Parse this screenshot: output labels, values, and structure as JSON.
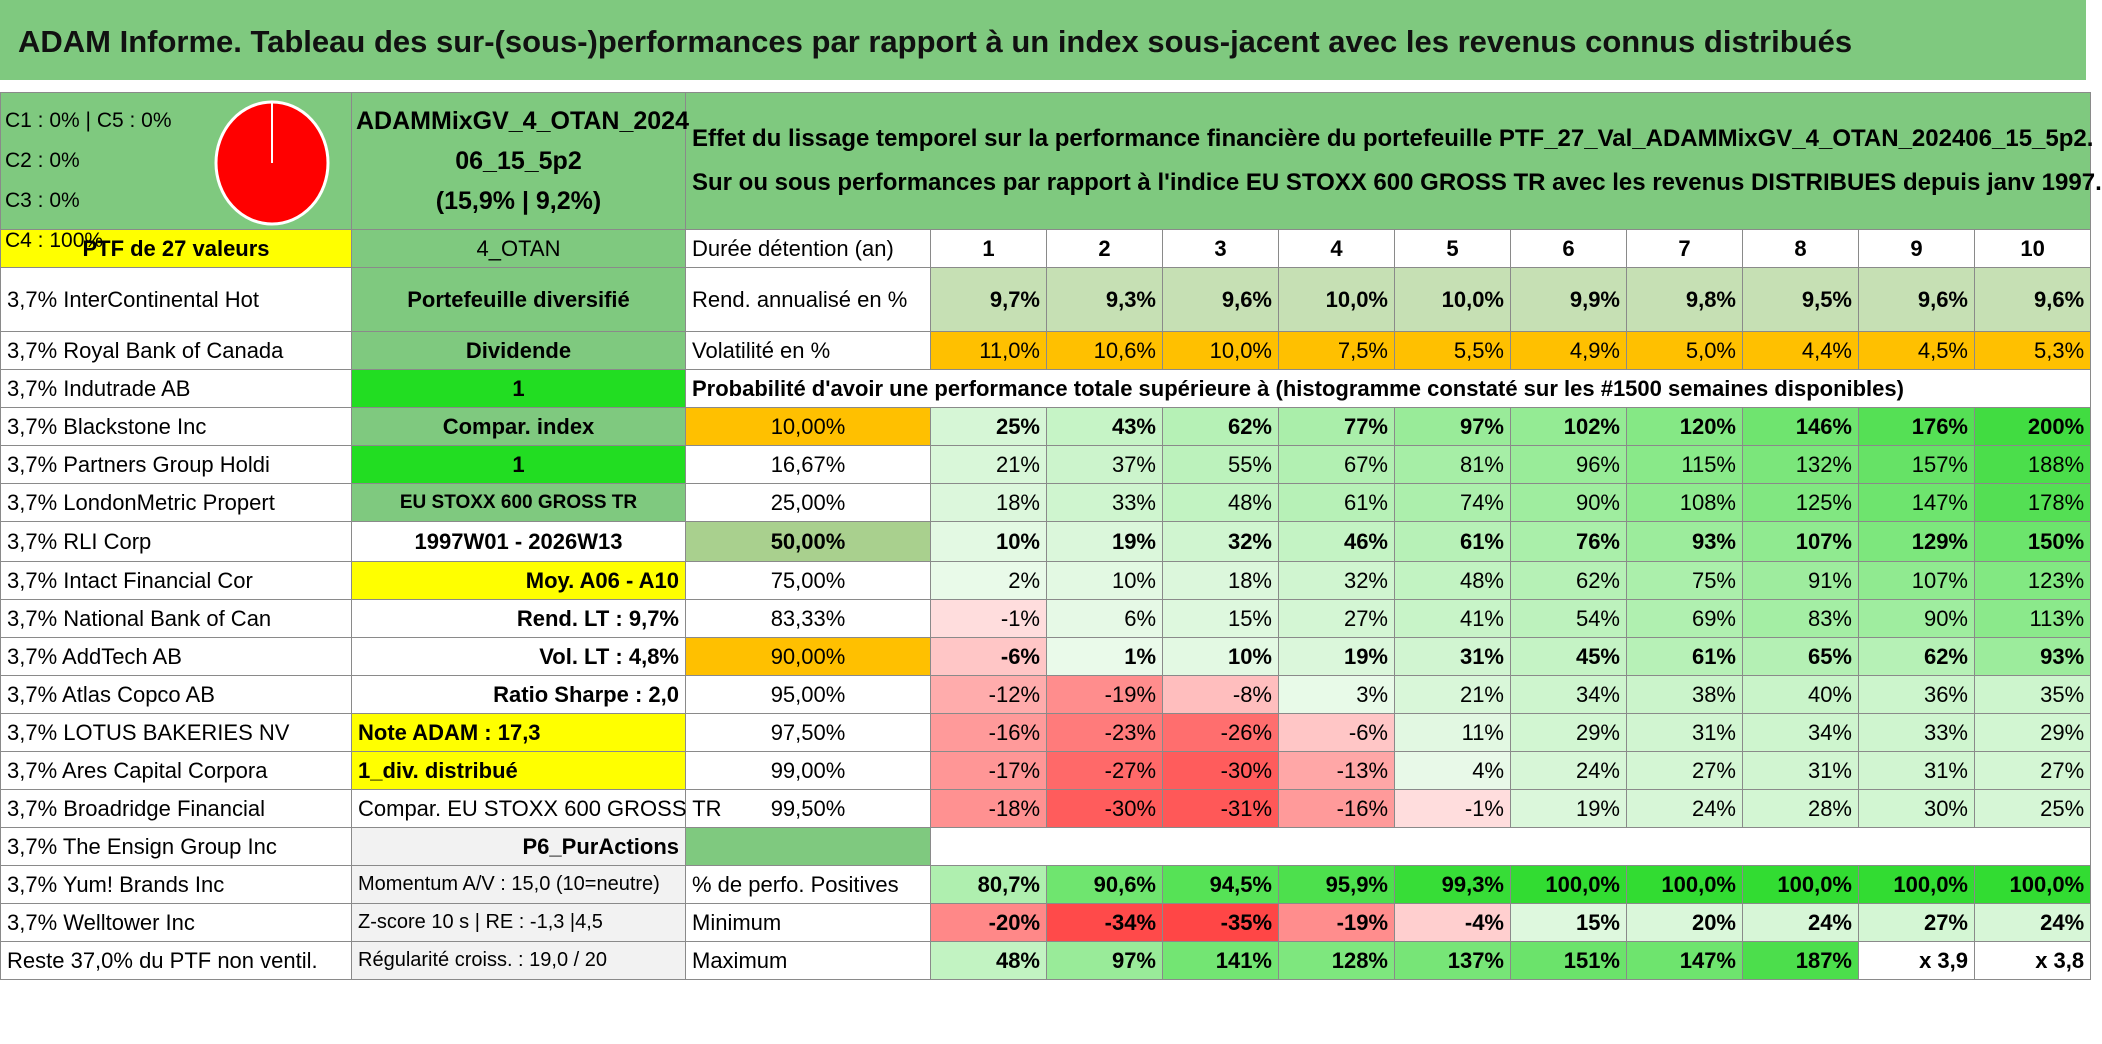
{
  "title": "ADAM Informe. Tableau des sur-(sous-)performances par rapport à un index sous-jacent avec les revenus connus distribués",
  "pie": {
    "labels": [
      "C1 : 0% | C5 : 0%",
      "C2 : 0%",
      "C3 : 0%",
      "C4 : 100%"
    ],
    "color": "#ff0000"
  },
  "portfolio": {
    "name_line1": "ADAMMixGV_4_OTAN_2024",
    "name_line2": "06_15_5p2",
    "name_line3": "(15,9% | 9,2%)"
  },
  "description": {
    "line1": "Effet du lissage temporel sur la performance financière du portefeuille PTF_27_Val_ADAMMixGV_4_OTAN_202406_15_5p2.",
    "line2": "Sur ou sous performances par rapport à l'indice EU STOXX 600 GROSS TR avec les revenus DISTRIBUES depuis janv 1997."
  },
  "holdings": [
    "PTF de 27 valeurs",
    "3,7% InterContinental Hot",
    "3,7% Royal Bank of Canada",
    "3,7% Indutrade AB",
    "3,7% Blackstone Inc",
    "3,7% Partners Group Holdi",
    "3,7% LondonMetric Propert",
    "3,7% RLI Corp",
    "3,7% Intact Financial Cor",
    "3,7% National Bank of Can",
    "3,7% AddTech AB",
    "3,7% Atlas Copco AB",
    "3,7% LOTUS BAKERIES NV",
    "3,7% Ares Capital Corpora",
    "3,7% Broadridge Financial",
    "3,7% The Ensign Group Inc",
    "3,7% Yum! Brands Inc",
    "3,7% Welltower Inc",
    "Reste 37,0% du PTF non ventil."
  ],
  "info": [
    "4_OTAN",
    "Portefeuille diversifié",
    "Dividende",
    "1",
    "Compar. index",
    "1",
    "EU STOXX 600 GROSS TR",
    "1997W01 - 2026W13",
    "Moy. A06 - A10",
    "Rend. LT : 9,7%",
    "Vol. LT : 4,8%",
    "Ratio Sharpe : 2,0",
    "Note ADAM : 17,3",
    "1_div. distribué",
    "Compar. EU STOXX 600 GROSS TR",
    "P6_PurActions",
    "Momentum A/V : 15,0 (10=neutre)",
    "Z-score 10 s | RE : -1,3 |4,5",
    "Régularité croiss. : 19,0 / 20"
  ],
  "header": {
    "label": "Durée détention (an)",
    "years": [
      "1",
      "2",
      "3",
      "4",
      "5",
      "6",
      "7",
      "8",
      "9",
      "10"
    ]
  },
  "rend": {
    "label": "Rend. annualisé en %",
    "values": [
      "9,7%",
      "9,3%",
      "9,6%",
      "10,0%",
      "10,0%",
      "9,9%",
      "9,8%",
      "9,5%",
      "9,6%",
      "9,6%"
    ]
  },
  "vol": {
    "label": "Volatilité en %",
    "values": [
      "11,0%",
      "10,6%",
      "10,0%",
      "7,5%",
      "5,5%",
      "4,9%",
      "5,0%",
      "4,4%",
      "4,5%",
      "5,3%"
    ]
  },
  "prob_label": "Probabilité d'avoir une performance totale supérieure à (histogramme constaté sur les #1500 semaines disponibles)",
  "prob_rows": [
    {
      "p": "10,00%",
      "v": [
        "25%",
        "43%",
        "62%",
        "77%",
        "97%",
        "102%",
        "120%",
        "146%",
        "176%",
        "200%"
      ]
    },
    {
      "p": "16,67%",
      "v": [
        "21%",
        "37%",
        "55%",
        "67%",
        "81%",
        "96%",
        "115%",
        "132%",
        "157%",
        "188%"
      ]
    },
    {
      "p": "25,00%",
      "v": [
        "18%",
        "33%",
        "48%",
        "61%",
        "74%",
        "90%",
        "108%",
        "125%",
        "147%",
        "178%"
      ]
    },
    {
      "p": "50,00%",
      "v": [
        "10%",
        "19%",
        "32%",
        "46%",
        "61%",
        "76%",
        "93%",
        "107%",
        "129%",
        "150%"
      ]
    },
    {
      "p": "75,00%",
      "v": [
        "2%",
        "10%",
        "18%",
        "32%",
        "48%",
        "62%",
        "75%",
        "91%",
        "107%",
        "123%"
      ]
    },
    {
      "p": "83,33%",
      "v": [
        "-1%",
        "6%",
        "15%",
        "27%",
        "41%",
        "54%",
        "69%",
        "83%",
        "90%",
        "113%"
      ]
    },
    {
      "p": "90,00%",
      "v": [
        "-6%",
        "1%",
        "10%",
        "19%",
        "31%",
        "45%",
        "61%",
        "65%",
        "62%",
        "93%"
      ]
    },
    {
      "p": "95,00%",
      "v": [
        "-12%",
        "-19%",
        "-8%",
        "3%",
        "21%",
        "34%",
        "38%",
        "40%",
        "36%",
        "35%"
      ]
    },
    {
      "p": "97,50%",
      "v": [
        "-16%",
        "-23%",
        "-26%",
        "-6%",
        "11%",
        "29%",
        "31%",
        "34%",
        "33%",
        "29%"
      ]
    },
    {
      "p": "99,00%",
      "v": [
        "-17%",
        "-27%",
        "-30%",
        "-13%",
        "4%",
        "24%",
        "27%",
        "31%",
        "31%",
        "27%"
      ]
    },
    {
      "p": "99,50%",
      "v": [
        "-18%",
        "-30%",
        "-31%",
        "-16%",
        "-1%",
        "19%",
        "24%",
        "28%",
        "30%",
        "25%"
      ]
    }
  ],
  "pos": {
    "label": "% de perfo. Positives",
    "values": [
      "80,7%",
      "90,6%",
      "94,5%",
      "95,9%",
      "99,3%",
      "100,0%",
      "100,0%",
      "100,0%",
      "100,0%",
      "100,0%"
    ]
  },
  "min": {
    "label": "Minimum",
    "values": [
      "-20%",
      "-34%",
      "-35%",
      "-19%",
      "-4%",
      "15%",
      "20%",
      "24%",
      "27%",
      "24%"
    ]
  },
  "max": {
    "label": "Maximum",
    "values": [
      "48%",
      "97%",
      "141%",
      "128%",
      "137%",
      "151%",
      "147%",
      "187%",
      "x 3,9",
      "x 3,8"
    ]
  }
}
